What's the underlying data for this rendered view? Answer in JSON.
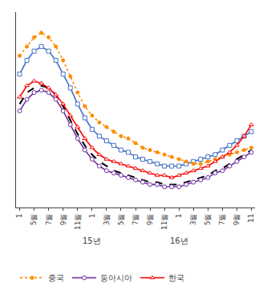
{
  "chart_data": {
    "type": "line",
    "categories": [
      "1",
      null,
      "5월",
      null,
      "7월",
      null,
      "9월",
      null,
      "11월",
      null,
      "1",
      null,
      "3월",
      null,
      "5월",
      null,
      "7월",
      null,
      "9월",
      null,
      "11월",
      null,
      "1",
      null,
      "3월",
      null,
      "5월",
      null,
      "7월",
      null,
      "9월",
      null,
      "11"
    ],
    "series": [
      {
        "color": "#4472C4",
        "line_style": "solid",
        "marker": "square",
        "values": [
          88,
          94,
          98,
          100,
          98,
          94,
          88,
          82,
          75,
          69,
          64,
          61,
          59,
          57,
          55,
          54,
          52,
          51,
          50,
          49,
          48,
          48,
          48,
          49,
          50,
          51,
          52,
          53,
          55,
          57,
          59,
          61,
          63
        ]
      },
      {
        "name": "중국",
        "color": "#FF8C00",
        "line_style": "dotted",
        "marker": "dot",
        "values": [
          96,
          100,
          104,
          106,
          104,
          100,
          94,
          87,
          80,
          74,
          70,
          67,
          65,
          63,
          61,
          60,
          58,
          56,
          55,
          54,
          53,
          52,
          51,
          50,
          49,
          49,
          50,
          51,
          52,
          53,
          54,
          55,
          56
        ]
      },
      {
        "color": "black",
        "line_style": "dashed",
        "marker": "none",
        "values": [
          75,
          80,
          82,
          83,
          82,
          79,
          74,
          68,
          62,
          57,
          53,
          50,
          48,
          46,
          45,
          44,
          43,
          42,
          41,
          41,
          40,
          40,
          40,
          41,
          42,
          43,
          44,
          46,
          47,
          49,
          51,
          53,
          55
        ]
      },
      {
        "name": "동아시아",
        "color": "#7030A0",
        "line_style": "solid",
        "marker": "circle",
        "values": [
          72,
          77,
          80,
          81,
          80,
          77,
          72,
          66,
          60,
          55,
          51,
          48,
          46,
          45,
          44,
          43,
          42,
          41,
          40,
          40,
          39,
          39,
          39,
          40,
          41,
          42,
          43,
          45,
          46,
          48,
          50,
          52,
          54
        ]
      },
      {
        "name": "한국",
        "color": "#FF0000",
        "line_style": "solid",
        "marker": "triangle",
        "values": [
          78,
          83,
          85,
          84,
          82,
          79,
          75,
          70,
          65,
          60,
          56,
          53,
          51,
          50,
          49,
          48,
          47,
          46,
          45,
          44,
          44,
          43,
          44,
          45,
          46,
          47,
          48,
          50,
          52,
          54,
          57,
          61,
          66
        ]
      }
    ],
    "ylim": [
      30,
      115
    ],
    "tick_labels": "x",
    "grid": false,
    "legend": "bottom",
    "annotations": [
      {
        "text": "15년",
        "x": 10
      },
      {
        "text": "16년",
        "x": 22
      }
    ]
  }
}
